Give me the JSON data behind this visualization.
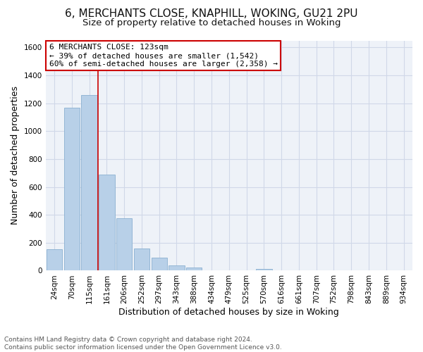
{
  "title1": "6, MERCHANTS CLOSE, KNAPHILL, WOKING, GU21 2PU",
  "title2": "Size of property relative to detached houses in Woking",
  "xlabel": "Distribution of detached houses by size in Woking",
  "ylabel": "Number of detached properties",
  "bin_labels": [
    "24sqm",
    "70sqm",
    "115sqm",
    "161sqm",
    "206sqm",
    "252sqm",
    "297sqm",
    "343sqm",
    "388sqm",
    "434sqm",
    "479sqm",
    "525sqm",
    "570sqm",
    "616sqm",
    "661sqm",
    "707sqm",
    "752sqm",
    "798sqm",
    "843sqm",
    "889sqm",
    "934sqm"
  ],
  "bar_values": [
    152,
    1170,
    1258,
    690,
    375,
    160,
    92,
    37,
    22,
    0,
    0,
    0,
    14,
    0,
    0,
    0,
    0,
    0,
    0,
    0,
    0
  ],
  "bar_color": "#b8d0e8",
  "bar_edge_color": "#8ab0d0",
  "vline_color": "#cc0000",
  "annotation_title": "6 MERCHANTS CLOSE: 123sqm",
  "annotation_line1": "← 39% of detached houses are smaller (1,542)",
  "annotation_line2": "60% of semi-detached houses are larger (2,358) →",
  "annotation_box_color": "#ffffff",
  "annotation_box_edge": "#cc0000",
  "ylim": [
    0,
    1650
  ],
  "yticks": [
    0,
    200,
    400,
    600,
    800,
    1000,
    1200,
    1400,
    1600
  ],
  "footer1": "Contains HM Land Registry data © Crown copyright and database right 2024.",
  "footer2": "Contains public sector information licensed under the Open Government Licence v3.0.",
  "bg_color": "#ffffff",
  "plot_bg_color": "#eef2f8",
  "grid_color": "#d0d8e8",
  "title1_fontsize": 11,
  "title2_fontsize": 9.5,
  "annotation_fontsize": 8,
  "xlabel_fontsize": 9,
  "ylabel_fontsize": 9,
  "tick_fontsize": 7.5,
  "footer_fontsize": 6.5,
  "vline_x_data": 2.5
}
